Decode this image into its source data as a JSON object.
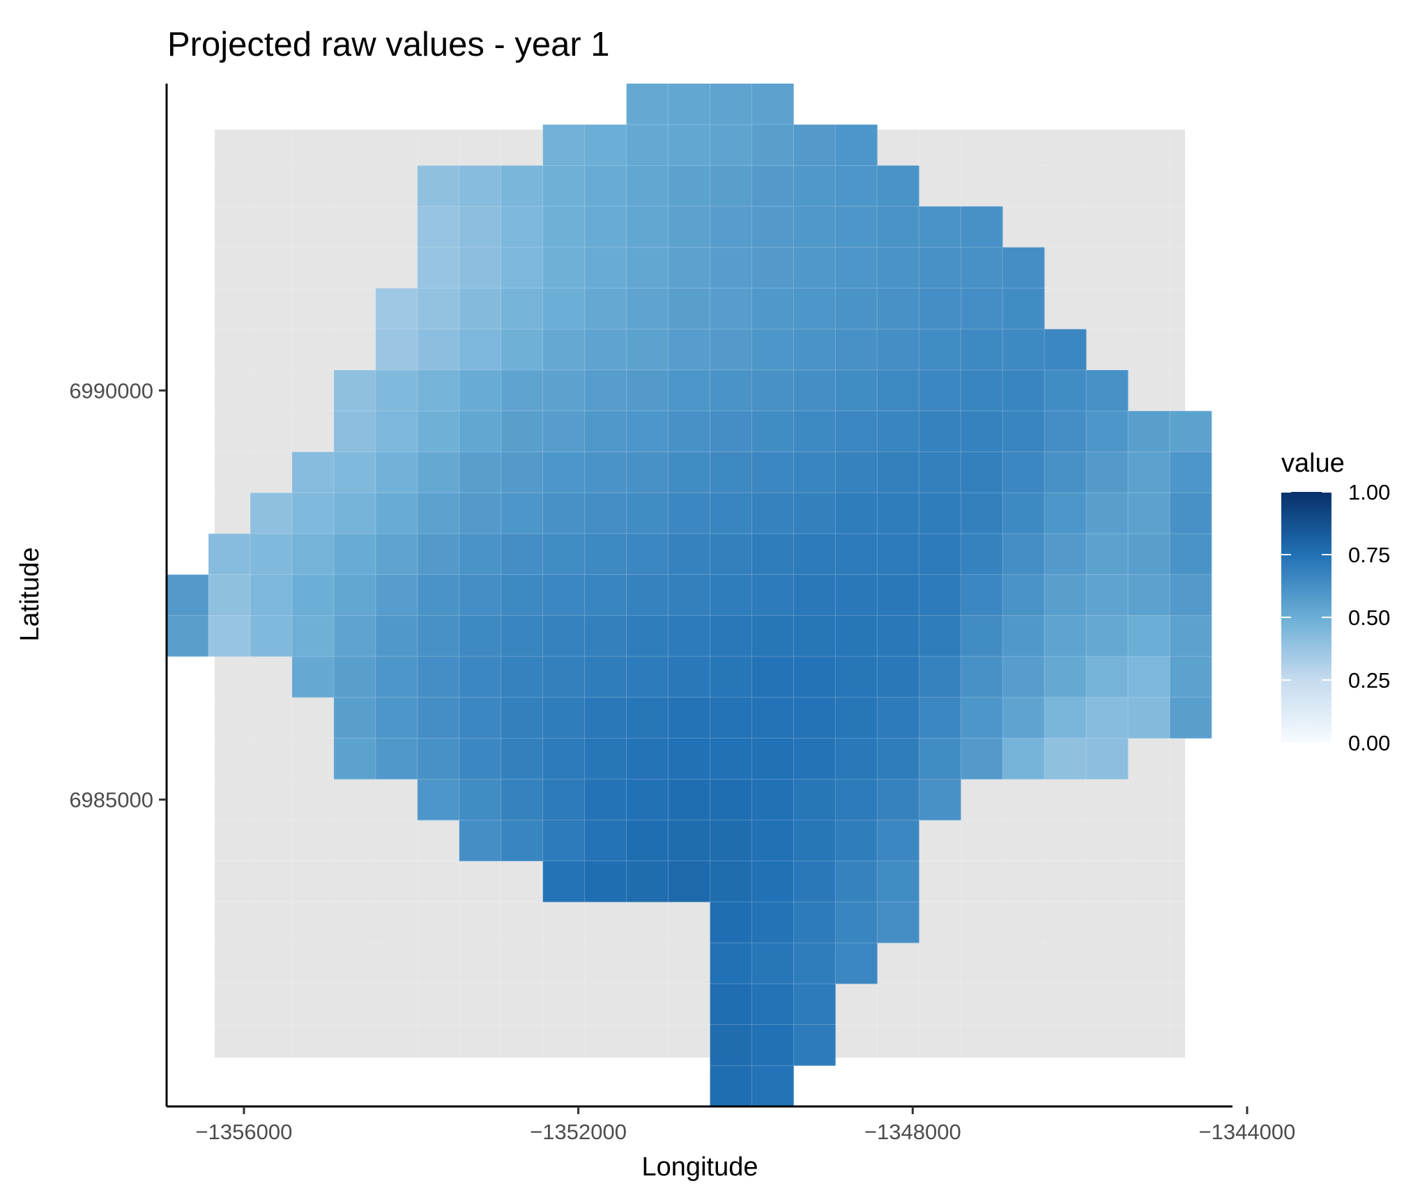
{
  "chart_data": {
    "type": "heatmap",
    "title": "Projected raw values - year 1",
    "xlabel": "Longitude",
    "ylabel": "Latitude",
    "x_ticks": [
      -1356000,
      -1352000,
      -1348000,
      -1344000
    ],
    "y_ticks": [
      6985000,
      6990000
    ],
    "xlim": [
      -1356925,
      -1344175
    ],
    "ylim": [
      6981250,
      6993750
    ],
    "cell_size": 500,
    "grid_origin": {
      "x_first_center": -1356675,
      "y_top_center": 6993500
    },
    "grid_columns": 26,
    "grid_rows": 25,
    "grid": [
      [
        null,
        null,
        null,
        null,
        null,
        null,
        null,
        null,
        null,
        null,
        null,
        0.52,
        0.53,
        0.54,
        0.55,
        null,
        null,
        null,
        null,
        null,
        null,
        null,
        null,
        null,
        null,
        null
      ],
      [
        null,
        null,
        null,
        null,
        null,
        null,
        null,
        null,
        null,
        0.48,
        0.5,
        0.52,
        0.53,
        0.54,
        0.56,
        0.58,
        0.6,
        null,
        null,
        null,
        null,
        null,
        null,
        null,
        null,
        null
      ],
      [
        null,
        null,
        null,
        null,
        null,
        null,
        0.4,
        0.42,
        0.46,
        0.49,
        0.51,
        0.53,
        0.55,
        0.56,
        0.58,
        0.59,
        0.6,
        0.61,
        null,
        null,
        null,
        null,
        null,
        null,
        null,
        null
      ],
      [
        null,
        null,
        null,
        null,
        null,
        null,
        0.38,
        0.41,
        0.45,
        0.49,
        0.51,
        0.53,
        0.55,
        0.57,
        0.58,
        0.59,
        0.6,
        0.61,
        0.61,
        0.62,
        null,
        null,
        null,
        null,
        null,
        null
      ],
      [
        null,
        null,
        null,
        null,
        null,
        null,
        0.38,
        0.41,
        0.45,
        0.49,
        0.51,
        0.53,
        0.55,
        0.57,
        0.58,
        0.59,
        0.6,
        0.61,
        0.62,
        0.62,
        0.63,
        null,
        null,
        null,
        null,
        null
      ],
      [
        null,
        null,
        null,
        null,
        null,
        0.36,
        0.39,
        0.43,
        0.47,
        0.5,
        0.52,
        0.54,
        0.56,
        0.57,
        0.59,
        0.6,
        0.61,
        0.62,
        0.63,
        0.63,
        0.64,
        null,
        null,
        null,
        null,
        null
      ],
      [
        null,
        null,
        null,
        null,
        null,
        0.37,
        0.41,
        0.45,
        0.49,
        0.52,
        0.54,
        0.55,
        0.57,
        0.58,
        0.6,
        0.61,
        0.62,
        0.63,
        0.64,
        0.65,
        0.65,
        0.66,
        null,
        null,
        null,
        null
      ],
      [
        null,
        null,
        null,
        null,
        0.4,
        0.44,
        0.47,
        0.51,
        0.54,
        0.55,
        0.57,
        0.58,
        0.6,
        0.61,
        0.62,
        0.63,
        0.64,
        0.65,
        0.66,
        0.67,
        0.67,
        0.64,
        0.62,
        null,
        null,
        null
      ],
      [
        null,
        null,
        null,
        null,
        0.41,
        0.45,
        0.49,
        0.53,
        0.56,
        0.57,
        0.59,
        0.6,
        0.62,
        0.63,
        0.64,
        0.65,
        0.66,
        0.67,
        0.68,
        0.68,
        0.67,
        0.63,
        0.6,
        0.56,
        0.55,
        null
      ],
      [
        null,
        null,
        null,
        0.42,
        0.44,
        0.48,
        0.52,
        0.56,
        0.58,
        0.6,
        0.61,
        0.62,
        0.64,
        0.65,
        0.66,
        0.67,
        0.68,
        0.69,
        0.69,
        0.69,
        0.66,
        0.62,
        0.58,
        0.55,
        0.6,
        null
      ],
      [
        null,
        null,
        0.4,
        0.44,
        0.47,
        0.51,
        0.55,
        0.58,
        0.6,
        0.62,
        0.63,
        0.64,
        0.66,
        0.67,
        0.68,
        0.69,
        0.7,
        0.7,
        0.7,
        0.69,
        0.65,
        0.6,
        0.56,
        0.55,
        0.62,
        null
      ],
      [
        null,
        0.42,
        0.44,
        0.47,
        0.51,
        0.54,
        0.58,
        0.61,
        0.63,
        0.64,
        0.65,
        0.66,
        0.68,
        0.69,
        0.7,
        0.71,
        0.71,
        0.71,
        0.71,
        0.68,
        0.63,
        0.58,
        0.55,
        0.56,
        0.61,
        null
      ],
      [
        0.58,
        0.4,
        0.45,
        0.5,
        0.53,
        0.57,
        0.61,
        0.63,
        0.65,
        0.66,
        0.67,
        0.68,
        0.69,
        0.7,
        0.71,
        0.72,
        0.72,
        0.72,
        0.71,
        0.66,
        0.61,
        0.56,
        0.54,
        0.55,
        0.58,
        null
      ],
      [
        0.56,
        0.38,
        0.44,
        0.49,
        0.54,
        0.59,
        0.62,
        0.65,
        0.67,
        0.68,
        0.69,
        0.7,
        0.71,
        0.72,
        0.73,
        0.73,
        0.73,
        0.72,
        0.7,
        0.64,
        0.59,
        0.54,
        0.52,
        0.5,
        0.55,
        null
      ],
      [
        null,
        null,
        null,
        0.52,
        0.56,
        0.6,
        0.63,
        0.66,
        0.68,
        0.69,
        0.7,
        0.71,
        0.72,
        0.73,
        0.74,
        0.74,
        0.73,
        0.72,
        0.68,
        0.62,
        0.57,
        0.52,
        0.47,
        0.45,
        0.55,
        null
      ],
      [
        null,
        null,
        null,
        null,
        0.56,
        0.6,
        0.63,
        0.66,
        0.69,
        0.7,
        0.72,
        0.73,
        0.74,
        0.74,
        0.74,
        0.74,
        0.73,
        0.71,
        0.66,
        0.6,
        0.54,
        0.46,
        0.42,
        0.43,
        0.56,
        null
      ],
      [
        null,
        null,
        null,
        null,
        0.55,
        0.59,
        0.62,
        0.66,
        0.69,
        0.71,
        0.73,
        0.74,
        0.75,
        0.75,
        0.75,
        0.74,
        0.72,
        0.7,
        0.64,
        0.58,
        0.47,
        0.4,
        0.41,
        null,
        null,
        null
      ],
      [
        null,
        null,
        null,
        null,
        null,
        null,
        0.6,
        0.64,
        0.68,
        0.71,
        0.74,
        0.75,
        0.76,
        0.76,
        0.75,
        0.73,
        0.71,
        0.68,
        0.62,
        null,
        null,
        null,
        null,
        null,
        null,
        null
      ],
      [
        null,
        null,
        null,
        null,
        null,
        null,
        null,
        0.63,
        0.67,
        0.71,
        0.74,
        0.76,
        0.77,
        0.77,
        0.75,
        0.73,
        0.7,
        0.66,
        null,
        null,
        null,
        null,
        null,
        null,
        null,
        null
      ],
      [
        null,
        null,
        null,
        null,
        null,
        null,
        null,
        null,
        null,
        0.74,
        0.76,
        0.77,
        0.78,
        0.77,
        0.75,
        0.72,
        0.68,
        0.64,
        null,
        null,
        null,
        null,
        null,
        null,
        null,
        null
      ],
      [
        null,
        null,
        null,
        null,
        null,
        null,
        null,
        null,
        null,
        null,
        null,
        null,
        null,
        0.76,
        0.74,
        0.71,
        0.67,
        0.63,
        null,
        null,
        null,
        null,
        null,
        null,
        null,
        null
      ],
      [
        null,
        null,
        null,
        null,
        null,
        null,
        null,
        null,
        null,
        null,
        null,
        null,
        null,
        0.75,
        0.73,
        0.7,
        0.66,
        null,
        null,
        null,
        null,
        null,
        null,
        null,
        null,
        null
      ],
      [
        null,
        null,
        null,
        null,
        null,
        null,
        null,
        null,
        null,
        null,
        null,
        null,
        null,
        0.76,
        0.74,
        0.71,
        null,
        null,
        null,
        null,
        null,
        null,
        null,
        null,
        null,
        null
      ],
      [
        null,
        null,
        null,
        null,
        null,
        null,
        null,
        null,
        null,
        null,
        null,
        null,
        null,
        0.77,
        0.75,
        0.71,
        null,
        null,
        null,
        null,
        null,
        null,
        null,
        null,
        null,
        null
      ],
      [
        null,
        null,
        null,
        null,
        null,
        null,
        null,
        null,
        null,
        null,
        null,
        null,
        null,
        0.76,
        0.74,
        null,
        null,
        null,
        null,
        null,
        null,
        null,
        null,
        null,
        null,
        null
      ]
    ],
    "legend": {
      "title": "value",
      "position": "right",
      "labels": [
        "1.00",
        "0.75",
        "0.50",
        "0.25",
        "0.00"
      ],
      "values": [
        1.0,
        0.75,
        0.5,
        0.25,
        0.0
      ],
      "range": [
        0,
        1
      ]
    },
    "colors": {
      "low": "#f7fbff",
      "mid1": "#c6dbef",
      "mid2": "#6baed6",
      "mid3": "#2171b5",
      "high": "#08306b",
      "panel_background": "#e5e5e5",
      "grid_line": "#ffffff"
    },
    "grid_lines": true
  }
}
